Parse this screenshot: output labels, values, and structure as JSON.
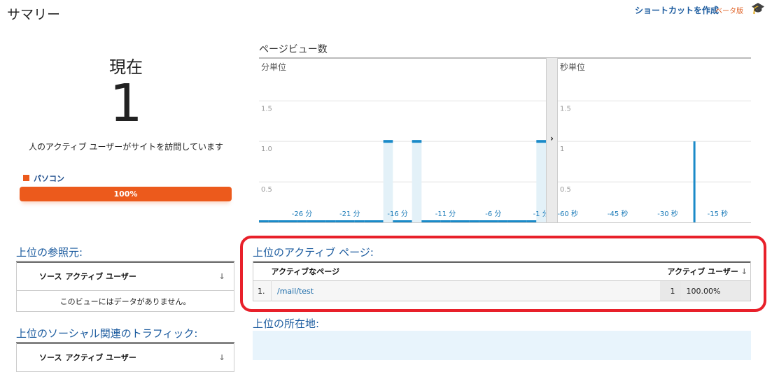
{
  "header": {
    "title": "サマリー",
    "shortcut_label": "ショートカットを作成",
    "beta_label": "ベータ版",
    "icon": "graduation-cap-icon"
  },
  "now": {
    "label": "現在",
    "count": "1",
    "description": "人のアクティブ ユーザーがサイトを訪問しています",
    "device_label": "パソコン",
    "device_percent_label": "100%",
    "device_percent": 100,
    "device_color": "#ec5a1c"
  },
  "pageviews": {
    "title": "ページビュー数"
  },
  "chart_data": [
    {
      "type": "bar",
      "title": "分単位",
      "x_unit": "分",
      "x": [
        -30,
        -29,
        -28,
        -27,
        -26,
        -25,
        -24,
        -23,
        -22,
        -21,
        -20,
        -19,
        -18,
        -17,
        -16,
        -15,
        -14,
        -13,
        -12,
        -11,
        -10,
        -9,
        -8,
        -7,
        -6,
        -5,
        -4,
        -3,
        -2,
        -1
      ],
      "values": [
        0,
        0,
        0,
        0,
        0,
        0,
        0,
        0,
        0,
        0,
        0,
        0,
        0,
        1,
        0,
        0,
        1,
        0,
        0,
        0,
        0,
        0,
        0,
        0,
        0,
        0,
        0,
        0,
        0,
        1
      ],
      "xtick_labels": [
        "-26 分",
        "-21 分",
        "-16 分",
        "-11 分",
        "-6 分",
        "-1 分"
      ],
      "xticks": [
        -26,
        -21,
        -16,
        -11,
        -6,
        -1
      ],
      "yticks": [
        "1.5",
        "1.0",
        "0.5"
      ],
      "ytick_values": [
        1.5,
        1.0,
        0.5
      ],
      "ylim": [
        0,
        2
      ],
      "grid": true,
      "color": "#1a8ac8"
    },
    {
      "type": "bar",
      "title": "秒単位",
      "x_unit": "秒",
      "bars": [
        {
          "x": -22,
          "value": 1
        }
      ],
      "xtick_labels": [
        "-60 秒",
        "-45 秒",
        "-30 秒",
        "-15 秒"
      ],
      "xticks": [
        -60,
        -45,
        -30,
        -15
      ],
      "yticks": [
        "1.5",
        "1",
        "0.5"
      ],
      "ytick_values": [
        1.5,
        1,
        0.5
      ],
      "xlim": [
        -63,
        -5
      ],
      "ylim": [
        0,
        2
      ],
      "grid": true,
      "color": "#1a8ac8"
    }
  ],
  "referrers": {
    "title": "上位の参照元:",
    "col_source": "ソース",
    "col_users": "アクティブ ユーザー",
    "empty": "このビューにはデータがありません。"
  },
  "social": {
    "title": "上位のソーシャル関連のトラフィック:",
    "col_source": "ソース",
    "col_users": "アクティブ ユーザー"
  },
  "active_pages": {
    "title": "上位のアクティブ ページ:",
    "col_page": "アクティブなページ",
    "col_users": "アクティブ ユーザー",
    "rows": [
      {
        "rank": "1.",
        "page": "/mail/test",
        "users": "1",
        "percent": "100.00%"
      }
    ]
  },
  "locations": {
    "title": "上位の所在地:"
  }
}
